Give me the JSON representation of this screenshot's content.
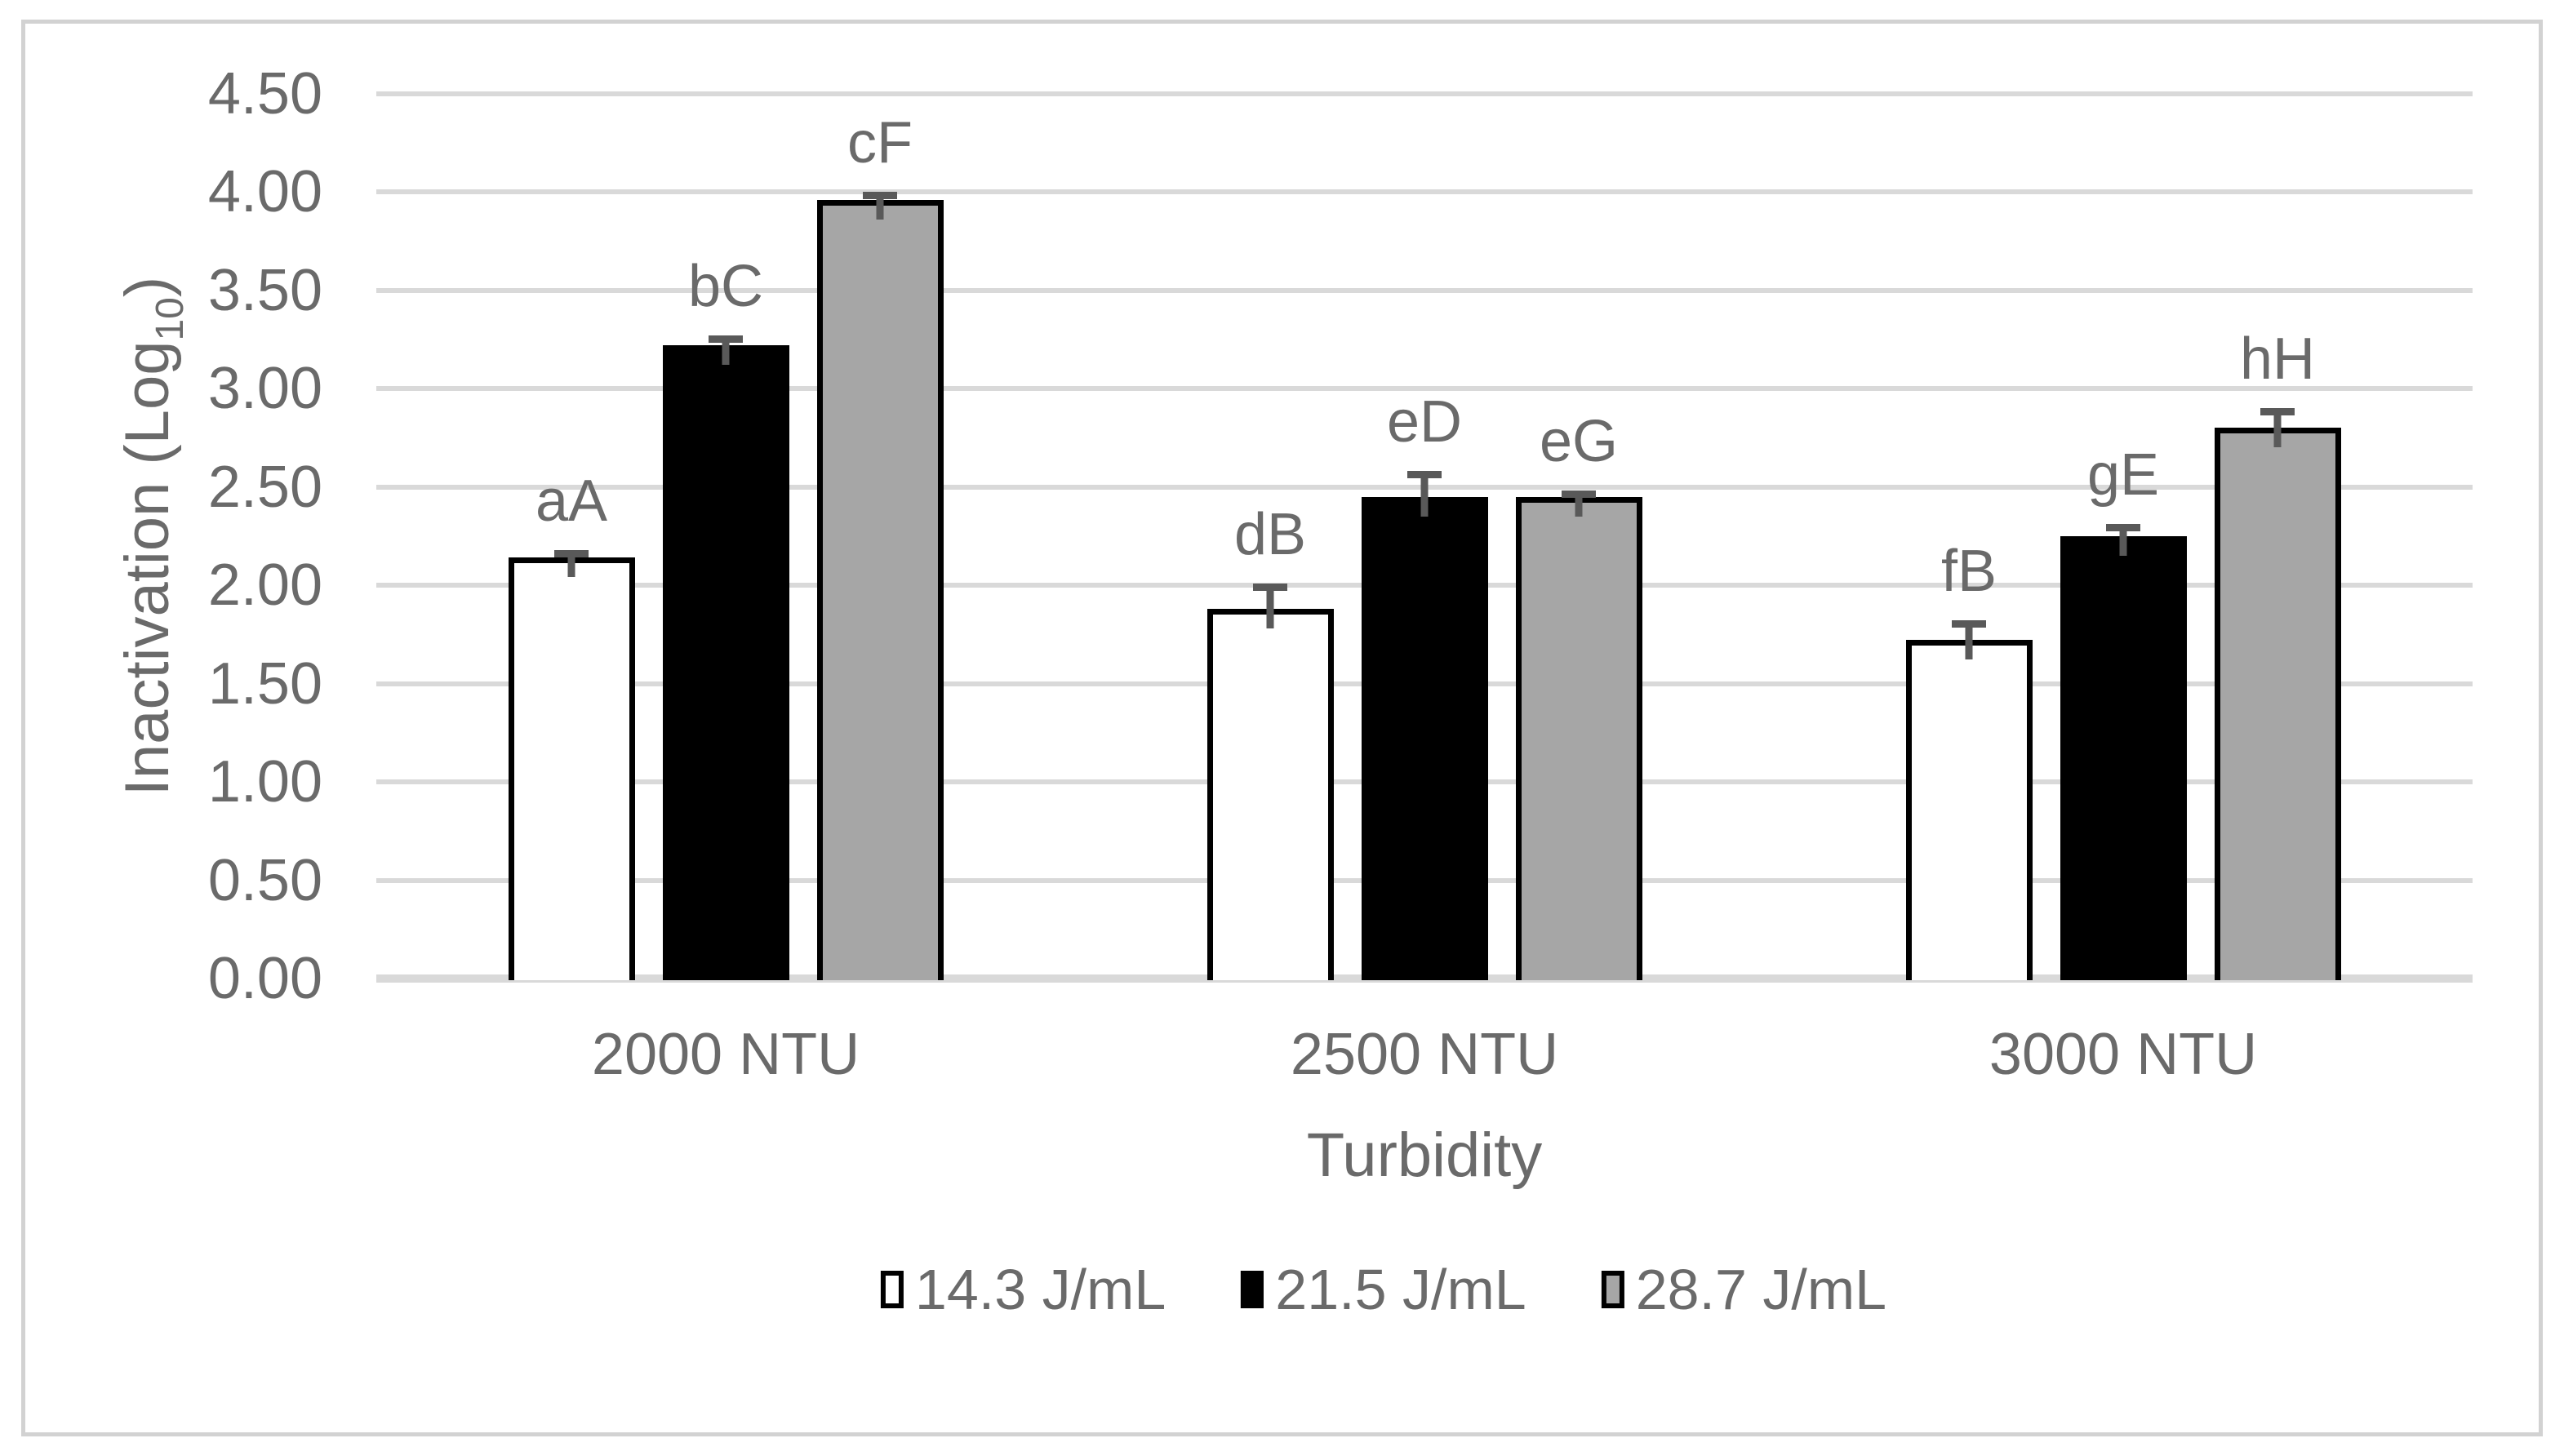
{
  "chart_data": {
    "type": "bar",
    "title": "",
    "xlabel": "Turbidity",
    "ylabel_text": "Inactivation (Log",
    "ylabel_sub": "10",
    "ylabel_end": ")",
    "categories": [
      "2000 NTU",
      "2500 NTU",
      "3000 NTU"
    ],
    "series": [
      {
        "name": "14.3 J/mL",
        "fill": "#ffffff",
        "border": "#000000",
        "values": [
          2.14,
          1.88,
          1.72
        ],
        "errors": [
          0.04,
          0.13,
          0.1
        ],
        "labels": [
          "aA",
          "dB",
          "fB"
        ]
      },
      {
        "name": "21.5 J/mL",
        "fill": "#000000",
        "border": "#000000",
        "values": [
          3.22,
          2.45,
          2.25
        ],
        "errors": [
          0.05,
          0.13,
          0.06
        ],
        "labels": [
          "bC",
          "eD",
          "gE"
        ]
      },
      {
        "name": "28.7 J/mL",
        "fill": "#a6a6a6",
        "border": "#000000",
        "values": [
          3.96,
          2.45,
          2.8
        ],
        "errors": [
          0.04,
          0.03,
          0.1
        ],
        "labels": [
          "cF",
          "eG",
          "hH"
        ]
      }
    ],
    "ylim": [
      0,
      4.5
    ],
    "ytick_step": 0.5,
    "ytick_labels": [
      "0.00",
      "0.50",
      "1.00",
      "1.50",
      "2.00",
      "2.50",
      "3.00",
      "3.50",
      "4.00",
      "4.50"
    ],
    "grid": true,
    "legend_position": "bottom",
    "colors": {
      "grid": "#d9d9d9",
      "axis_line": "#d9d9d9",
      "text": "#6a6a6a",
      "error_bar": "#595959",
      "frame": "#d2d2d2",
      "background": "#ffffff"
    }
  }
}
